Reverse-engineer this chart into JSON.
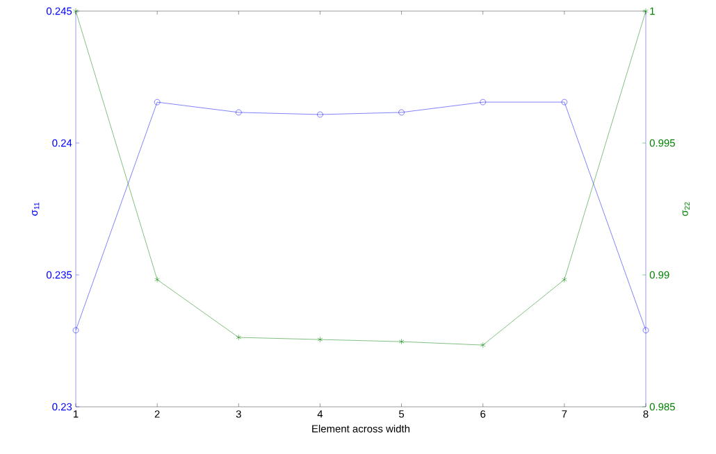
{
  "chart_data": {
    "type": "line",
    "xlabel": "Element across width",
    "ylabel": "σ$_{11}$",
    "y2label": "σ$_{22}$",
    "x": [
      1,
      2,
      3,
      4,
      5,
      6,
      7,
      8
    ],
    "series": [
      {
        "color": "#0000ff",
        "marker": "circle",
        "values": [
          0.2329,
          0.24155,
          0.24116,
          0.24108,
          0.24116,
          0.24155,
          0.24155,
          0.2329
        ]
      },
      {
        "color": "#008000",
        "marker": "cross",
        "axis": "y2",
        "values": [
          1.0,
          0.98982,
          0.98763,
          0.98755,
          0.98747,
          0.98734,
          0.98982,
          1.0
        ]
      }
    ],
    "xlim": [
      1,
      8
    ],
    "xticks": [
      1,
      2,
      3,
      4,
      5,
      6,
      7,
      8
    ],
    "ylim": [
      0.23,
      0.245
    ],
    "yticks": [
      0.23,
      0.235,
      0.24,
      0.245
    ],
    "y2lim": [
      0.985,
      1
    ],
    "y2ticks": [
      0.985,
      0.99,
      0.995,
      1
    ],
    "grid": false
  }
}
